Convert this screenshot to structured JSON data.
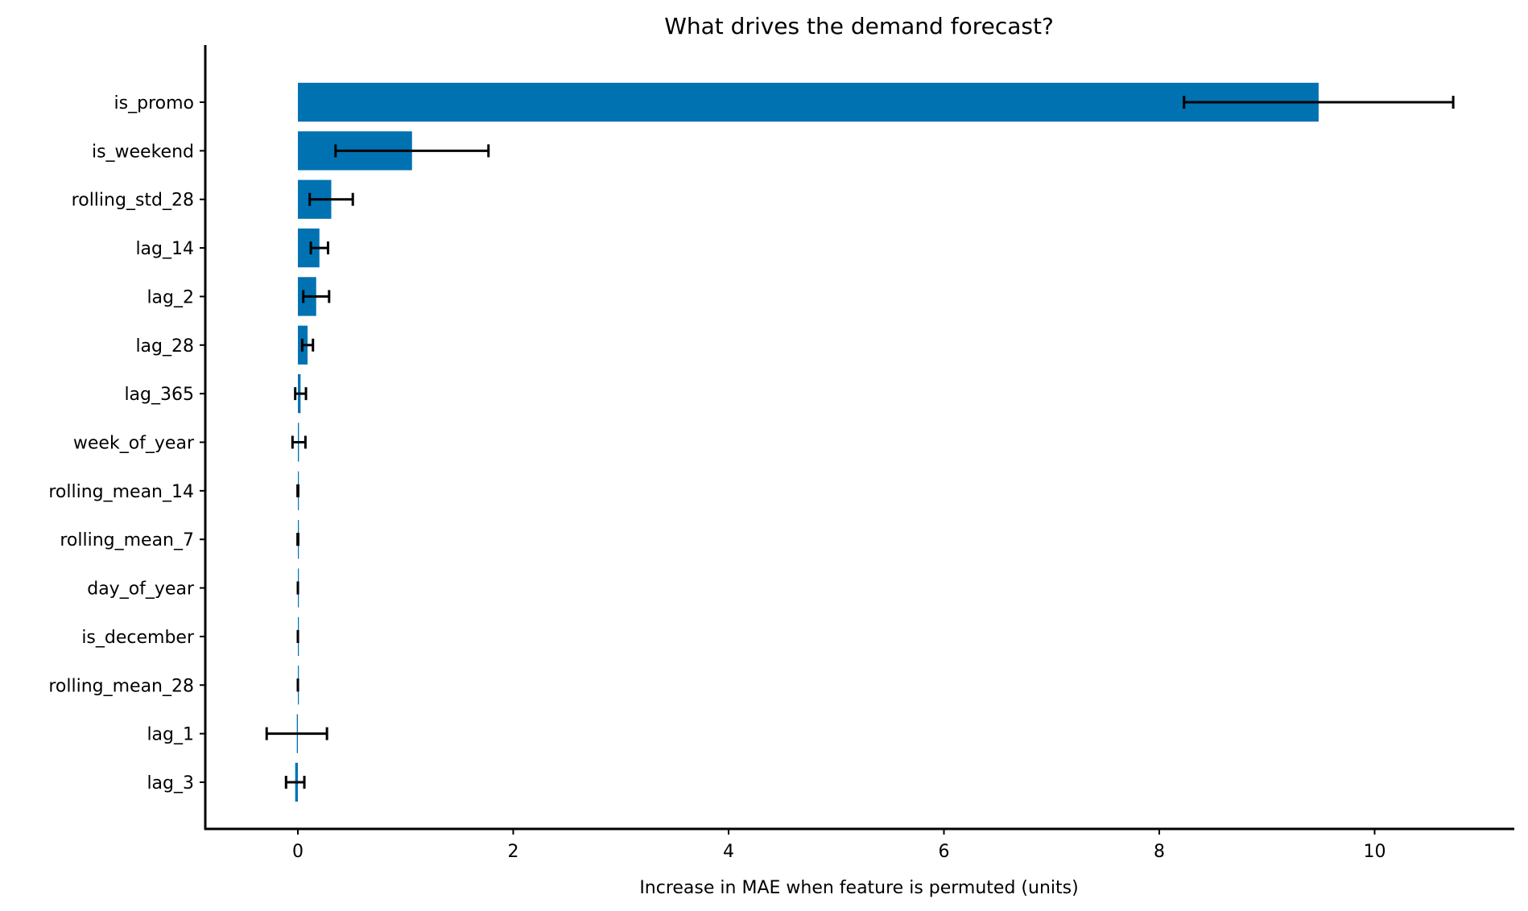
{
  "chart_data": {
    "type": "bar",
    "orientation": "horizontal",
    "title": "What drives the demand forecast?",
    "xlabel": "Increase in MAE when feature is permuted (units)",
    "ylabel": "",
    "xlim": [
      -0.86,
      11.29
    ],
    "xticks": [
      0,
      2,
      4,
      6,
      8,
      10
    ],
    "xtick_labels": [
      "0",
      "2",
      "4",
      "6",
      "8",
      "10"
    ],
    "grid": false,
    "legend": null,
    "bar_color": "#0072B2",
    "errorbar_color": "#000000",
    "categories": [
      "is_promo",
      "is_weekend",
      "rolling_std_28",
      "lag_14",
      "lag_2",
      "lag_28",
      "lag_365",
      "week_of_year",
      "rolling_mean_14",
      "rolling_mean_7",
      "day_of_year",
      "is_december",
      "rolling_mean_28",
      "lag_1",
      "lag_3"
    ],
    "values": [
      9.48,
      1.06,
      0.31,
      0.2,
      0.17,
      0.09,
      0.025,
      0.01,
      0.0,
      0.0,
      0.0,
      0.0,
      0.0,
      -0.01,
      -0.025
    ],
    "errors": [
      1.25,
      0.71,
      0.2,
      0.08,
      0.12,
      0.05,
      0.05,
      0.06,
      0.003,
      0.003,
      0.0,
      0.0,
      0.0,
      0.28,
      0.085
    ]
  }
}
